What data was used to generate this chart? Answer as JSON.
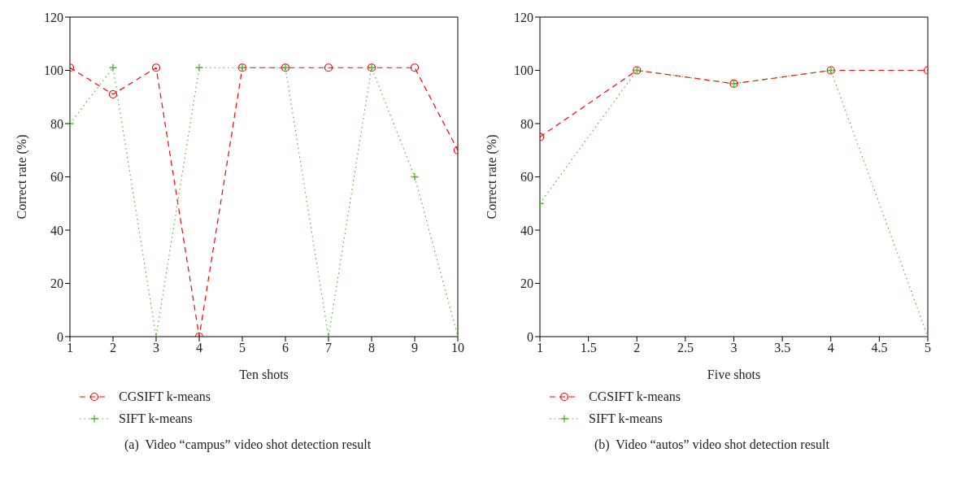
{
  "chart_data": [
    {
      "type": "line",
      "xlabel": "Ten shots",
      "ylabel": "Correct rate (%)",
      "x": [
        1,
        2,
        3,
        4,
        5,
        6,
        7,
        8,
        9,
        10
      ],
      "xlim": [
        1,
        10
      ],
      "xticks": [
        1,
        2,
        3,
        4,
        5,
        6,
        7,
        8,
        9,
        10
      ],
      "ylim": [
        0,
        120
      ],
      "yticks": [
        0,
        20,
        40,
        60,
        80,
        100,
        120
      ],
      "grid": false,
      "legend": "bottom left",
      "annotations": [
        "(a)  Video “campus” video shot detection result"
      ],
      "series": [
        {
          "name": "CGSIFT k-means",
          "color": "#ff0000",
          "marker": "circle",
          "line_style": "dashed",
          "values": [
            101,
            91,
            101,
            0,
            101,
            101,
            101,
            101,
            101,
            70
          ]
        },
        {
          "name": "SIFT k-means",
          "color": "#4cb82a",
          "marker": "cross",
          "line_style": "dotted",
          "values": [
            80,
            101,
            0,
            101,
            101,
            101,
            0,
            101,
            60,
            0
          ]
        }
      ]
    },
    {
      "type": "line",
      "xlabel": "Five shots",
      "ylabel": "Correct rate (%)",
      "x": [
        1,
        2,
        3,
        4,
        5
      ],
      "xlim": [
        1,
        5
      ],
      "xticks": [
        1,
        1.5,
        2,
        2.5,
        3,
        3.5,
        4,
        4.5,
        5
      ],
      "ylim": [
        0,
        120
      ],
      "yticks": [
        0,
        20,
        40,
        60,
        80,
        100,
        120
      ],
      "grid": false,
      "legend": "bottom left",
      "annotations": [
        "(b)  Video “autos” video shot detection result"
      ],
      "series": [
        {
          "name": "CGSIFT k-means",
          "color": "#ff0000",
          "marker": "circle",
          "line_style": "dashed",
          "values": [
            75,
            100,
            95,
            100,
            100
          ]
        },
        {
          "name": "SIFT k-means",
          "color": "#4cb82a",
          "marker": "cross",
          "line_style": "dotted",
          "values": [
            50,
            100,
            95,
            100,
            0
          ]
        }
      ]
    }
  ]
}
